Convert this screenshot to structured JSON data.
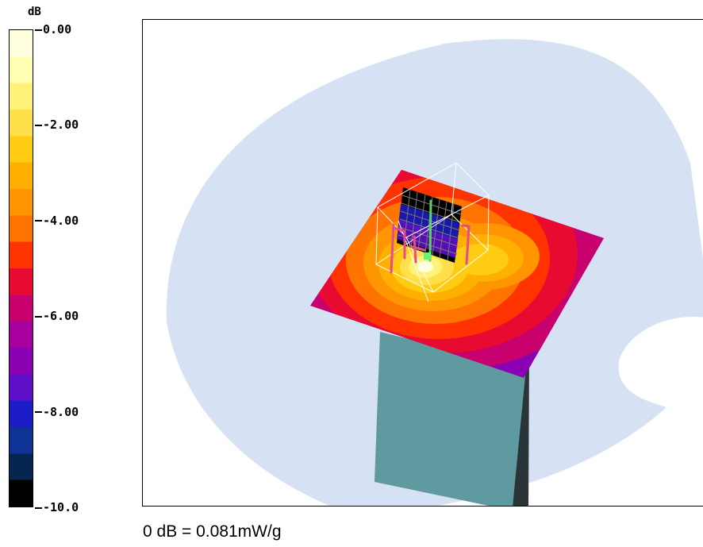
{
  "colorbar": {
    "unit": "dB",
    "ticks": [
      "0.00",
      "-2.00",
      "-4.00",
      "-6.00",
      "-8.00",
      "-10.0"
    ],
    "min": -10.0,
    "max": 0.0,
    "band_colors": [
      "#ffffe0",
      "#ffffb4",
      "#fff27a",
      "#ffe04a",
      "#ffcc14",
      "#ffb000",
      "#ff9500",
      "#ff7300",
      "#ff3300",
      "#e80a30",
      "#c8006e",
      "#a8009e",
      "#8c00b4",
      "#5f10c8",
      "#1c1cc8",
      "#0f3296",
      "#05264e",
      "#000000"
    ]
  },
  "plot": {
    "background_colors": {
      "head_phantom": "#d6e2f3",
      "phone_front": "#5f9aa0",
      "phone_side": "#2b3538",
      "probe_frame": "#ffffff"
    }
  },
  "reference_note": "0 dB = 0.081mW/g"
}
